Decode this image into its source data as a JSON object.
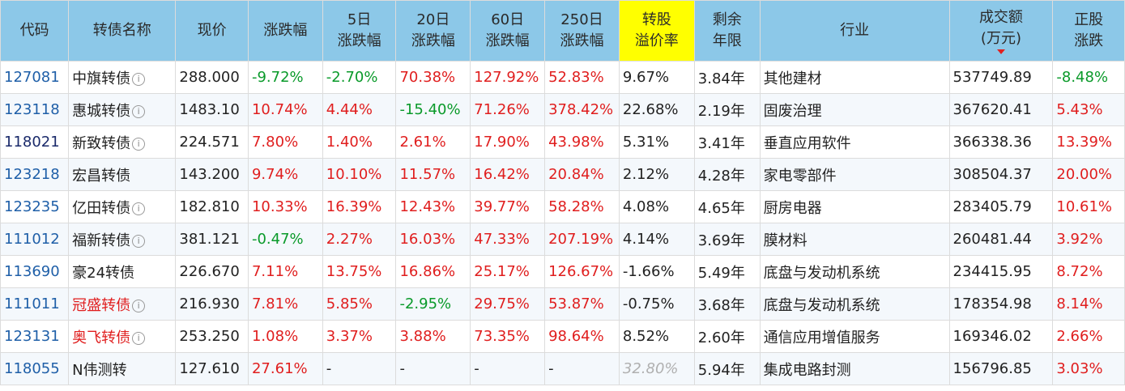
{
  "headers": {
    "code": "代码",
    "name": "转债名称",
    "price": "现价",
    "pct": "涨跌幅",
    "p5_l1": "5日",
    "p5_l2": "涨跌幅",
    "p20_l1": "20日",
    "p20_l2": "涨跌幅",
    "p60_l1": "60日",
    "p60_l2": "涨跌幅",
    "p250_l1": "250日",
    "p250_l2": "涨跌幅",
    "prem_l1": "转股",
    "prem_l2": "溢价率",
    "yrs_l1": "剩余",
    "yrs_l2": "年限",
    "industry": "行业",
    "vol_l1": "成交额",
    "vol_l2": "(万元)",
    "stk_l1": "正股",
    "stk_l2": "涨跌"
  },
  "colors": {
    "header_bg": "#8cc8e8",
    "highlight": "#ffff00",
    "up": "#e01e1e",
    "down": "#0a9a2a",
    "code": "#1f5fa8"
  },
  "rows": [
    {
      "code": "127081",
      "name": "中旗转债",
      "info": "i",
      "price": "288.000",
      "pct": "-9.72%",
      "p5": "-2.70%",
      "p20": "70.38%",
      "p60": "127.92%",
      "p250": "52.83%",
      "prem": "9.67%",
      "yrs": "3.84年",
      "industry": "其他建材",
      "vol": "537749.89",
      "stk": "-8.48%"
    },
    {
      "code": "123118",
      "name": "惠城转债",
      "info": "i",
      "price": "1483.10",
      "pct": "10.74%",
      "p5": "4.44%",
      "p20": "-15.40%",
      "p60": "71.26%",
      "p250": "378.42%",
      "prem": "22.68%",
      "yrs": "2.19年",
      "industry": "固废治理",
      "vol": "367620.41",
      "stk": "5.43%"
    },
    {
      "code": "118021",
      "name": "新致转债",
      "info": "i",
      "price": "224.571",
      "pct": "7.80%",
      "p5": "1.40%",
      "p20": "2.61%",
      "p60": "17.90%",
      "p250": "43.98%",
      "prem": "5.31%",
      "yrs": "3.41年",
      "industry": "垂直应用软件",
      "vol": "366338.36",
      "stk": "13.39%"
    },
    {
      "code": "123218",
      "name": "宏昌转债",
      "info": "",
      "price": "143.200",
      "pct": "9.74%",
      "p5": "10.10%",
      "p20": "11.57%",
      "p60": "16.42%",
      "p250": "20.84%",
      "prem": "2.12%",
      "yrs": "4.28年",
      "industry": "家电零部件",
      "vol": "308504.37",
      "stk": "20.00%"
    },
    {
      "code": "123235",
      "name": "亿田转债",
      "info": "i",
      "price": "182.810",
      "pct": "10.33%",
      "p5": "16.39%",
      "p20": "12.43%",
      "p60": "39.77%",
      "p250": "58.28%",
      "prem": "4.08%",
      "yrs": "4.65年",
      "industry": "厨房电器",
      "vol": "283405.79",
      "stk": "10.61%"
    },
    {
      "code": "111012",
      "name": "福新转债",
      "info": "i",
      "price": "381.121",
      "pct": "-0.47%",
      "p5": "2.27%",
      "p20": "16.03%",
      "p60": "47.33%",
      "p250": "207.19%",
      "prem": "4.14%",
      "yrs": "3.69年",
      "industry": "膜材料",
      "vol": "260481.44",
      "stk": "3.92%"
    },
    {
      "code": "113690",
      "name": "豪24转债",
      "info": "",
      "price": "226.670",
      "pct": "7.11%",
      "p5": "13.75%",
      "p20": "16.86%",
      "p60": "25.17%",
      "p250": "126.67%",
      "prem": "-1.66%",
      "yrs": "5.49年",
      "industry": "底盘与发动机系统",
      "vol": "234415.95",
      "stk": "8.72%"
    },
    {
      "code": "111011",
      "name": "冠盛转债",
      "info": "i",
      "price": "216.930",
      "pct": "7.81%",
      "p5": "5.85%",
      "p20": "-2.95%",
      "p60": "29.75%",
      "p250": "53.87%",
      "prem": "-0.75%",
      "yrs": "3.68年",
      "industry": "底盘与发动机系统",
      "vol": "178354.98",
      "stk": "8.14%"
    },
    {
      "code": "123131",
      "name": "奥飞转债",
      "info": "i",
      "price": "253.250",
      "pct": "1.08%",
      "p5": "3.37%",
      "p20": "3.88%",
      "p60": "73.35%",
      "p250": "98.64%",
      "prem": "8.52%",
      "yrs": "2.60年",
      "industry": "通信应用增值服务",
      "vol": "169346.02",
      "stk": "2.66%"
    },
    {
      "code": "118055",
      "name": "N伟测转",
      "info": "",
      "price": "127.610",
      "pct": "27.61%",
      "p5": "-",
      "p20": "-",
      "p60": "-",
      "p250": "-",
      "prem": "32.80%",
      "yrs": "5.94年",
      "industry": "集成电路封测",
      "vol": "156796.85",
      "stk": "3.03%"
    }
  ]
}
